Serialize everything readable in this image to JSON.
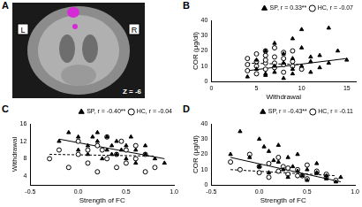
{
  "image_panel": {
    "panel": "A",
    "left_label": "L",
    "right_label": "R",
    "slice": "Z = -6"
  },
  "chart_data": [
    {
      "panel": "B",
      "type": "scatter",
      "x_label": "Withdrawal",
      "y_label": "COR (μg/dl)",
      "xlim": [
        0,
        16
      ],
      "xticks": [
        0,
        5,
        10,
        15
      ],
      "ylim": [
        0,
        40
      ],
      "yticks": [
        0,
        10,
        20,
        30,
        40
      ],
      "grid": false,
      "legend": "top-right",
      "series": [
        {
          "name": "SP, r = 0.33**",
          "color": "#000000",
          "marker": "triangle",
          "line_style": "solid",
          "x": [
            4,
            5,
            5,
            6,
            6,
            7,
            7,
            7,
            8,
            8,
            8,
            9,
            9,
            9,
            10,
            10,
            10,
            11,
            11,
            12,
            12,
            13,
            13,
            14,
            15,
            6,
            9,
            11
          ],
          "values": [
            3,
            8,
            14,
            5,
            20,
            10,
            25,
            6,
            12,
            2,
            18,
            8,
            15,
            28,
            10,
            22,
            34,
            13,
            6,
            17,
            9,
            35,
            12,
            20,
            14,
            4,
            5,
            16
          ],
          "fit": {
            "x": [
              4,
              15
            ],
            "values": [
              7,
              15
            ]
          }
        },
        {
          "name": "HC, r = -0.07",
          "color": "#000000",
          "marker": "open_circle",
          "line_style": "dashed",
          "x": [
            4,
            4,
            5,
            5,
            5,
            6,
            6,
            6,
            6,
            7,
            7,
            7,
            8,
            8,
            8,
            9,
            9,
            10,
            4,
            5,
            6,
            7,
            8,
            9
          ],
          "values": [
            7,
            15,
            10,
            18,
            5,
            12,
            20,
            8,
            14,
            9,
            16,
            22,
            11,
            6,
            19,
            10,
            13,
            8,
            11,
            13,
            17,
            12,
            15,
            20
          ],
          "fit": {
            "x": [
              4,
              10
            ],
            "values": [
              12,
              11
            ]
          }
        }
      ]
    },
    {
      "panel": "C",
      "type": "scatter",
      "x_label": "Strength of FC",
      "y_label": "Withdrawal",
      "xlim": [
        -0.5,
        1
      ],
      "xticks": [
        -0.5,
        {
          "value": 0,
          "label": "0.0"
        },
        0.5,
        {
          "value": 1,
          "label": "1.0"
        }
      ],
      "ylim": [
        2,
        16
      ],
      "yticks": [
        4,
        8,
        12,
        16
      ],
      "grid": false,
      "legend": "top-right",
      "series": [
        {
          "name": "SP, r = -0.40**",
          "color": "#000000",
          "marker": "triangle",
          "line_style": "solid",
          "x": [
            -0.2,
            -0.1,
            0,
            0,
            0.1,
            0.1,
            0.2,
            0.2,
            0.25,
            0.3,
            0.3,
            0.35,
            0.4,
            0.4,
            0.45,
            0.5,
            0.5,
            0.55,
            0.6,
            0.6,
            0.7,
            0.7,
            0.8,
            0.9,
            0.15,
            0.35
          ],
          "values": [
            12,
            14,
            10,
            13,
            11,
            9,
            12,
            14,
            8,
            10,
            13,
            11,
            9,
            12,
            10,
            8,
            11,
            13,
            7,
            10,
            9,
            11,
            8,
            7,
            13,
            9
          ],
          "fit": {
            "x": [
              -0.2,
              0.9
            ],
            "values": [
              12.5,
              8
            ]
          }
        },
        {
          "name": "HC, r = -0.04",
          "color": "#000000",
          "marker": "open_circle",
          "line_style": "dashed",
          "x": [
            -0.3,
            -0.2,
            -0.1,
            0,
            0,
            0.1,
            0.1,
            0.2,
            0.2,
            0.3,
            0.3,
            0.4,
            0.4,
            0.5,
            0.5,
            0.6,
            0.6,
            0.7,
            0.7,
            0.8,
            0.25,
            0.45
          ],
          "values": [
            8,
            10,
            6,
            9,
            12,
            7,
            10,
            5,
            11,
            8,
            13,
            6,
            9,
            10,
            7,
            8,
            11,
            5,
            9,
            6,
            10,
            12
          ],
          "fit": {
            "x": [
              -0.3,
              0.8
            ],
            "values": [
              9,
              8.6
            ]
          }
        }
      ]
    },
    {
      "panel": "D",
      "type": "scatter",
      "x_label": "Strength of FC",
      "y_label": "COR (μg/dl)",
      "xlim": [
        -0.5,
        1
      ],
      "xticks": [
        -0.5,
        {
          "value": 0,
          "label": "0.0"
        },
        0.5,
        {
          "value": 1,
          "label": "1.0"
        }
      ],
      "ylim": [
        0,
        40
      ],
      "yticks": [
        0,
        10,
        20,
        30,
        40
      ],
      "grid": false,
      "legend": "top-right",
      "series": [
        {
          "name": "SP, r = -0.43**",
          "color": "#000000",
          "marker": "triangle",
          "line_style": "solid",
          "x": [
            -0.3,
            -0.2,
            -0.1,
            0,
            0,
            0.1,
            0.1,
            0.2,
            0.2,
            0.25,
            0.3,
            0.3,
            0.35,
            0.4,
            0.4,
            0.45,
            0.5,
            0.5,
            0.6,
            0.6,
            0.7,
            0.7,
            0.8,
            0.85,
            0.15,
            0.05
          ],
          "values": [
            20,
            35,
            18,
            30,
            12,
            22,
            8,
            15,
            26,
            10,
            18,
            5,
            12,
            9,
            20,
            6,
            10,
            3,
            8,
            14,
            4,
            6,
            2,
            5,
            16,
            25
          ],
          "fit": {
            "x": [
              -0.3,
              0.85
            ],
            "values": [
              18,
              2
            ]
          }
        },
        {
          "name": "HC, r = -0.11",
          "color": "#000000",
          "marker": "open_circle",
          "line_style": "dashed",
          "x": [
            -0.3,
            -0.2,
            -0.1,
            0,
            0,
            0.1,
            0.1,
            0.2,
            0.2,
            0.3,
            0.3,
            0.4,
            0.4,
            0.5,
            0.5,
            0.6,
            0.6,
            0.7,
            0.7,
            0.8,
            0.25,
            0.45
          ],
          "values": [
            15,
            10,
            20,
            8,
            12,
            5,
            14,
            9,
            18,
            7,
            11,
            6,
            10,
            13,
            4,
            8,
            9,
            5,
            7,
            3,
            12,
            6
          ],
          "fit": {
            "x": [
              -0.3,
              0.8
            ],
            "values": [
              10,
              6
            ]
          }
        }
      ]
    }
  ]
}
